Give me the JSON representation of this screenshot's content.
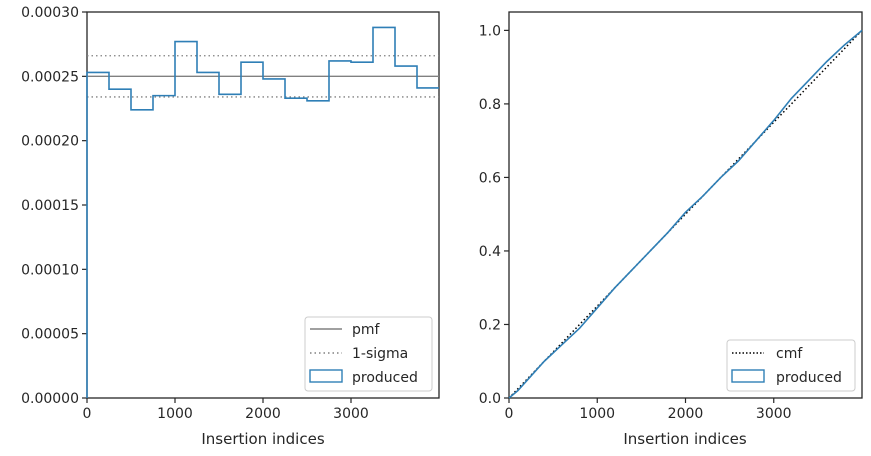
{
  "colors": {
    "produced": "#2f7fb6",
    "reference": "#808080",
    "cmf": "#000000",
    "axes": "#262626"
  },
  "chart_data": [
    {
      "type": "line",
      "title": "",
      "xlabel": "Insertion indices",
      "ylabel": "",
      "xlim": [
        0,
        4000
      ],
      "ylim": [
        0,
        0.0003
      ],
      "xticks": [
        0,
        1000,
        2000,
        3000
      ],
      "xtick_labels": [
        "0",
        "1000",
        "2000",
        "3000"
      ],
      "yticks": [
        0,
        5e-05,
        0.0001,
        0.00015,
        0.0002,
        0.00025,
        0.0003
      ],
      "ytick_labels": [
        "0.00000",
        "0.00005",
        "0.00010",
        "0.00015",
        "0.00020",
        "0.00025",
        "0.00030"
      ],
      "grid": false,
      "legend_position": "lower-right",
      "pmf": 0.00025,
      "sigma_band": [
        0.000234,
        0.000266
      ],
      "bin_edges": [
        0,
        250,
        500,
        750,
        1000,
        1250,
        1500,
        1750,
        2000,
        2250,
        2500,
        2750,
        3000,
        3250,
        3500,
        3750,
        4000
      ],
      "series": [
        {
          "name": "pmf",
          "style": "solid"
        },
        {
          "name": "1-sigma",
          "style": "dotted"
        },
        {
          "name": "produced",
          "style": "step",
          "values": [
            0.000253,
            0.00024,
            0.000224,
            0.000235,
            0.000277,
            0.000253,
            0.000236,
            0.000261,
            0.000248,
            0.000233,
            0.000231,
            0.000262,
            0.000261,
            0.000288,
            0.000258,
            0.000241
          ]
        }
      ]
    },
    {
      "type": "line",
      "title": "",
      "xlabel": "Insertion indices",
      "ylabel": "",
      "xlim": [
        0,
        4000
      ],
      "ylim": [
        0,
        1.05
      ],
      "xticks": [
        0,
        1000,
        2000,
        3000
      ],
      "xtick_labels": [
        "0",
        "1000",
        "2000",
        "3000"
      ],
      "yticks": [
        0,
        0.2,
        0.4,
        0.6,
        0.8,
        1.0
      ],
      "ytick_labels": [
        "0.0",
        "0.2",
        "0.4",
        "0.6",
        "0.8",
        "1.0"
      ],
      "grid": false,
      "legend_position": "lower-right",
      "series": [
        {
          "name": "cmf",
          "style": "dotted",
          "x": [
            0,
            4000
          ],
          "y": [
            0,
            1.0
          ]
        },
        {
          "name": "produced",
          "style": "solid",
          "x": [
            0,
            100,
            250,
            400,
            600,
            800,
            1000,
            1200,
            1400,
            1600,
            1800,
            2000,
            2200,
            2400,
            2600,
            2800,
            3000,
            3200,
            3400,
            3600,
            3800,
            4000
          ],
          "y": [
            0,
            0.02,
            0.06,
            0.1,
            0.145,
            0.19,
            0.245,
            0.3,
            0.35,
            0.4,
            0.45,
            0.505,
            0.55,
            0.6,
            0.645,
            0.7,
            0.755,
            0.815,
            0.865,
            0.915,
            0.96,
            1.0
          ]
        }
      ]
    }
  ]
}
